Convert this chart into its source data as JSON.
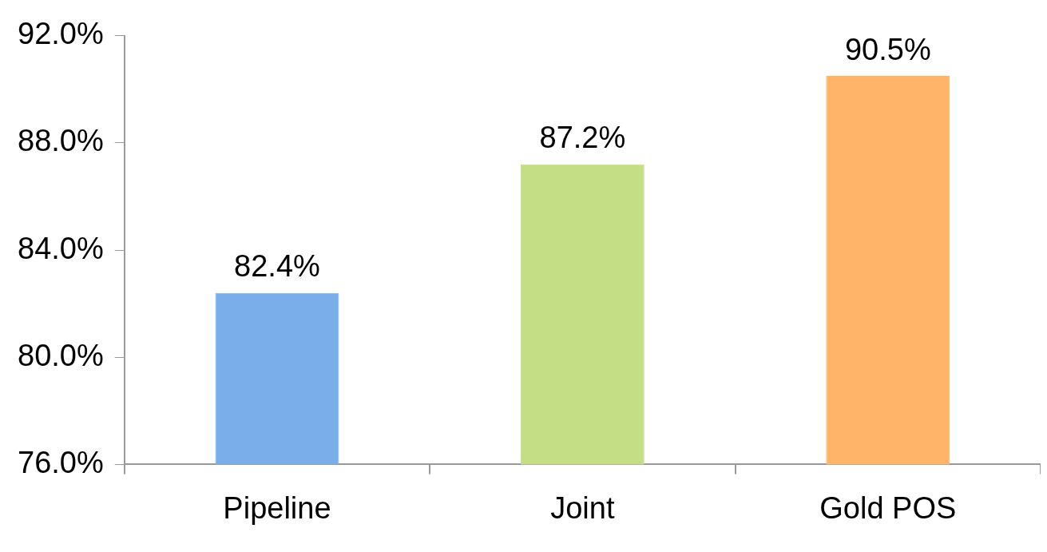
{
  "chart_data": {
    "type": "bar",
    "categories": [
      "Pipeline",
      "Joint",
      "Gold POS"
    ],
    "values": [
      82.4,
      87.2,
      90.5
    ],
    "colors": [
      "#7aaeea",
      "#c4de86",
      "#ffb469"
    ],
    "value_labels": [
      "82.4%",
      "87.2%",
      "90.5%"
    ],
    "ylim": [
      76,
      92
    ],
    "yticks": [
      {
        "value": 76,
        "label": "76.0%"
      },
      {
        "value": 80,
        "label": "80.0%"
      },
      {
        "value": 84,
        "label": "84.0%"
      },
      {
        "value": 88,
        "label": "88.0%"
      },
      {
        "value": 92,
        "label": "92.0%"
      }
    ],
    "grid": false,
    "legend": false
  }
}
